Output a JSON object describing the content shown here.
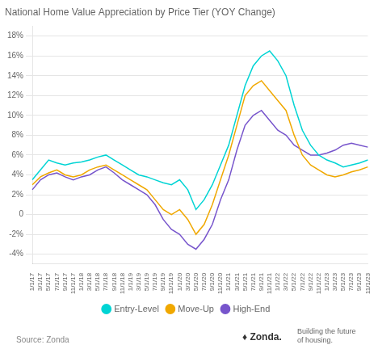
{
  "chart_data": {
    "type": "line",
    "title": "National Home Value Appreciation by Price Tier (YOY Change)",
    "categories": [
      "1/1/17",
      "3/1/17",
      "5/1/17",
      "7/1/17",
      "9/1/17",
      "11/1/17",
      "1/1/18",
      "3/1/18",
      "5/1/18",
      "7/1/18",
      "9/1/18",
      "11/1/18",
      "1/1/19",
      "3/1/19",
      "5/1/19",
      "7/1/19",
      "9/1/19",
      "11/1/19",
      "1/1/20",
      "3/1/20",
      "5/1/20",
      "7/1/20",
      "9/1/20",
      "11/1/20",
      "1/1/21",
      "3/1/21",
      "5/1/21",
      "7/1/21",
      "9/1/21",
      "11/1/21",
      "1/1/22",
      "3/1/22",
      "5/1/22",
      "7/1/22",
      "9/1/22",
      "11/1/22",
      "1/1/23",
      "3/1/23",
      "5/1/23",
      "7/1/23",
      "9/1/23",
      "11/1/23"
    ],
    "series": [
      {
        "name": "Entry-Level",
        "color": "#00d4d4",
        "values": [
          3.5,
          4.5,
          5.5,
          5.2,
          5.0,
          5.2,
          5.3,
          5.5,
          5.8,
          6.0,
          5.5,
          5.0,
          4.5,
          4.0,
          3.8,
          3.5,
          3.2,
          3.0,
          3.5,
          2.5,
          0.5,
          1.5,
          3.0,
          5.0,
          7.0,
          10.0,
          13.0,
          15.0,
          16.0,
          16.5,
          15.5,
          14.0,
          11.0,
          8.5,
          7.0,
          6.0,
          5.5,
          5.2,
          4.8,
          5.0,
          5.2,
          5.5
        ]
      },
      {
        "name": "Move-Up",
        "color": "#f0a800",
        "values": [
          3.0,
          3.8,
          4.2,
          4.5,
          4.0,
          3.8,
          4.0,
          4.5,
          4.8,
          5.0,
          4.5,
          4.0,
          3.5,
          3.0,
          2.5,
          1.5,
          0.5,
          0.0,
          0.5,
          -0.5,
          -2.0,
          -1.0,
          1.0,
          3.5,
          6.0,
          9.0,
          12.0,
          13.0,
          13.5,
          12.5,
          11.5,
          10.5,
          8.0,
          6.0,
          5.0,
          4.5,
          4.0,
          3.8,
          4.0,
          4.3,
          4.5,
          4.8
        ]
      },
      {
        "name": "High-End",
        "color": "#7755cc",
        "values": [
          2.5,
          3.5,
          4.0,
          4.2,
          3.8,
          3.5,
          3.8,
          4.0,
          4.5,
          4.8,
          4.2,
          3.5,
          3.0,
          2.5,
          2.0,
          1.0,
          -0.5,
          -1.5,
          -2.0,
          -3.0,
          -3.5,
          -2.5,
          -1.0,
          1.5,
          3.5,
          6.5,
          9.0,
          10.0,
          10.5,
          9.5,
          8.5,
          8.0,
          7.0,
          6.5,
          6.0,
          6.0,
          6.2,
          6.5,
          7.0,
          7.2,
          7.0,
          6.8
        ]
      }
    ],
    "ylim": [
      -5,
      19
    ],
    "yticks": [
      {
        "value": -4,
        "label": "-4%"
      },
      {
        "value": -2,
        "label": "-2%"
      },
      0,
      {
        "value": 2,
        "label": "2%"
      },
      {
        "value": 4,
        "label": "4%"
      },
      {
        "value": 6,
        "label": "6%"
      },
      {
        "value": 8,
        "label": "8%"
      },
      {
        "value": 10,
        "label": "10%"
      },
      {
        "value": 12,
        "label": "12%"
      },
      {
        "value": 14,
        "label": "14%"
      },
      {
        "value": 16,
        "label": "16%"
      },
      {
        "value": 18,
        "label": "18%"
      }
    ],
    "grid": true,
    "legend": "bottom",
    "annotations": [
      "Source: Zonda",
      "♦ Zonda.",
      "Building the future\nof housing."
    ]
  }
}
